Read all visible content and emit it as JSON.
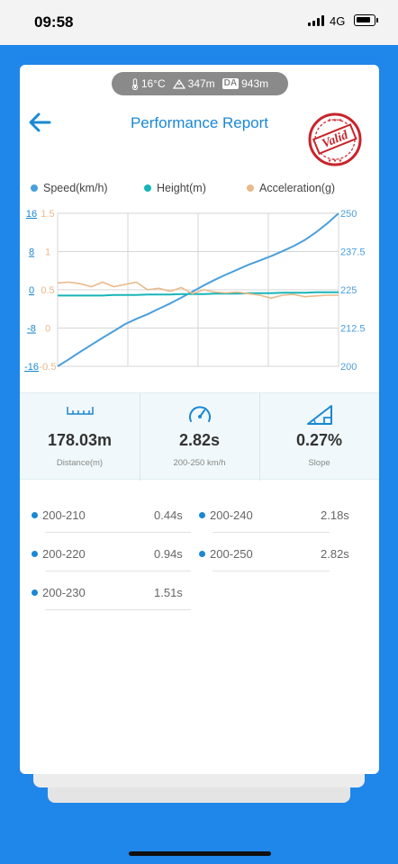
{
  "status": {
    "time": "09:58",
    "network": "4G"
  },
  "conditions": {
    "temperature": "16°C",
    "elevation": "347m",
    "da_label": "DA",
    "density_altitude": "943m"
  },
  "header": {
    "title": "Performance Report",
    "stamp_text": "Valid"
  },
  "legend": {
    "speed": "Speed(km/h)",
    "height": "Height(m)",
    "acceleration": "Acceleration(g)"
  },
  "colors": {
    "speed": "#4a9fdc",
    "height": "#17b5b8",
    "acceleration": "#eab98a",
    "accent": "#1a88d4",
    "stamp": "#c8252b"
  },
  "chart_data": {
    "type": "line",
    "left_axis_height": {
      "ticks": [
        "16",
        "8",
        "0",
        "-8",
        "-16"
      ],
      "ylim": [
        -16,
        16
      ]
    },
    "left_axis_acceleration": {
      "ticks": [
        "1.5",
        "1",
        "0.5",
        "0",
        "-0.5"
      ],
      "ylim": [
        -0.5,
        1.5
      ]
    },
    "right_axis_speed": {
      "ticks": [
        "250",
        "237.5",
        "225",
        "212.5",
        "200"
      ],
      "ylim": [
        200,
        250
      ]
    },
    "x": [
      0,
      0.04,
      0.08,
      0.12,
      0.16,
      0.2,
      0.24,
      0.28,
      0.32,
      0.36,
      0.4,
      0.44,
      0.48,
      0.52,
      0.56,
      0.6,
      0.64,
      0.68,
      0.72,
      0.76,
      0.8,
      0.84,
      0.88,
      0.92,
      0.96,
      1.0
    ],
    "series": [
      {
        "name": "Speed(km/h)",
        "axis": "right",
        "values": [
          200,
          202.3,
          204.7,
          207.0,
          209.3,
          211.5,
          213.8,
          215.5,
          217.0,
          218.8,
          220.5,
          222.4,
          224.4,
          226.4,
          228.3,
          230.0,
          231.6,
          233.2,
          234.6,
          236.0,
          237.6,
          239.3,
          241.3,
          243.8,
          246.7,
          250
        ]
      },
      {
        "name": "Height(m)",
        "axis": "left_height",
        "values": [
          -1.2,
          -1.2,
          -1.2,
          -1.2,
          -1.2,
          -1.1,
          -1.1,
          -1.1,
          -1.0,
          -1.0,
          -1.0,
          -0.9,
          -0.9,
          -0.9,
          -0.8,
          -0.8,
          -0.8,
          -0.7,
          -0.7,
          -0.7,
          -0.6,
          -0.6,
          -0.6,
          -0.5,
          -0.5,
          -0.5
        ]
      },
      {
        "name": "Acceleration(g)",
        "axis": "left_acceleration",
        "values": [
          0.59,
          0.6,
          0.58,
          0.54,
          0.6,
          0.54,
          0.57,
          0.6,
          0.5,
          0.52,
          0.48,
          0.53,
          0.45,
          0.5,
          0.47,
          0.46,
          0.47,
          0.45,
          0.43,
          0.39,
          0.43,
          0.44,
          0.41,
          0.42,
          0.43,
          0.43
        ]
      }
    ],
    "grid": true
  },
  "stats": {
    "distance": {
      "value": "178.03m",
      "label": "Distance(m)"
    },
    "time": {
      "value": "2.82s",
      "label": "200-250 km/h"
    },
    "slope": {
      "value": "0.27%",
      "label": "Slope"
    }
  },
  "splits": [
    {
      "name": "200-210",
      "time": "0.44s"
    },
    {
      "name": "200-220",
      "time": "0.94s"
    },
    {
      "name": "200-230",
      "time": "1.51s"
    },
    {
      "name": "200-240",
      "time": "2.18s"
    },
    {
      "name": "200-250",
      "time": "2.82s"
    }
  ]
}
